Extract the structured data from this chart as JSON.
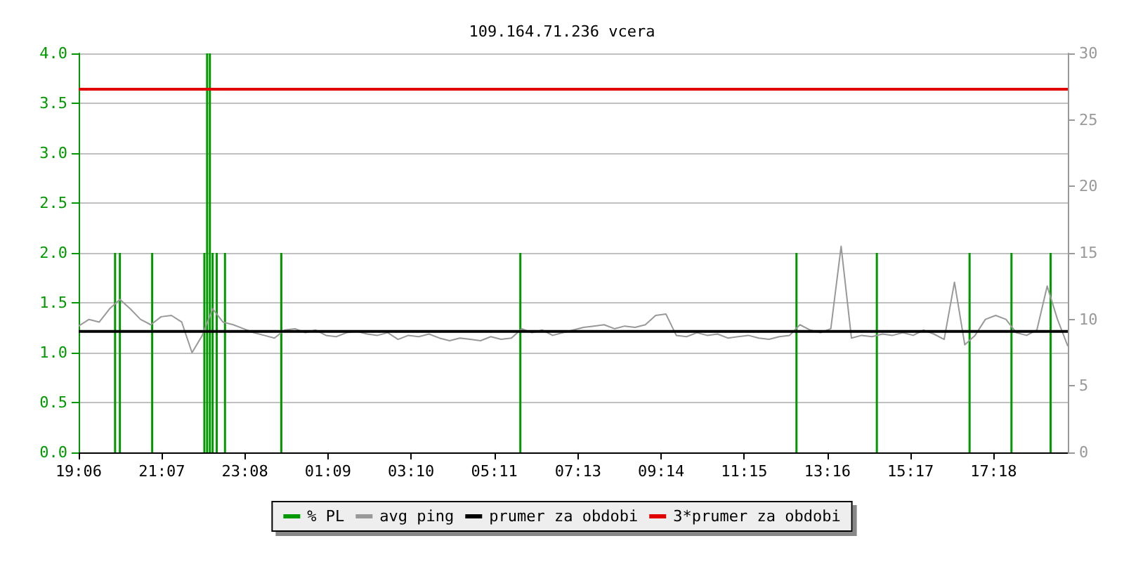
{
  "chart_data": {
    "type": "line",
    "title": "109.164.71.236 vcera",
    "xlim": [
      "--01-01T19:06",
      "--01-02T19:06"
    ],
    "xticks": [
      {
        "value": "--01-01T19:06",
        "label": "19:06"
      },
      {
        "value": "--01-01T21:07",
        "label": "21:07"
      },
      {
        "value": "--01-01T23:08",
        "label": "23:08"
      },
      {
        "value": "--01-02T01:09",
        "label": "01:09"
      },
      {
        "value": "--01-02T03:10",
        "label": "03:10"
      },
      {
        "value": "--01-02T05:11",
        "label": "05:11"
      },
      {
        "value": "--01-02T07:13",
        "label": "07:13"
      },
      {
        "value": "--01-02T09:14",
        "label": "09:14"
      },
      {
        "value": "--01-02T11:15",
        "label": "11:15"
      },
      {
        "value": "--01-02T13:16",
        "label": "13:16"
      },
      {
        "value": "--01-02T15:17",
        "label": "15:17"
      },
      {
        "value": "--01-02T17:18",
        "label": "17:18"
      }
    ],
    "ylim": [
      0,
      4
    ],
    "yticks": [
      {
        "value": 0,
        "label": "0.0"
      },
      {
        "value": 0.5,
        "label": "0.5"
      },
      {
        "value": 1,
        "label": "1.0"
      },
      {
        "value": 1.5,
        "label": "1.5"
      },
      {
        "value": 2,
        "label": "2.0"
      },
      {
        "value": 2.5,
        "label": "2.5"
      },
      {
        "value": 3,
        "label": "3.0"
      },
      {
        "value": 3.5,
        "label": "3.5"
      },
      {
        "value": 4,
        "label": "4.0"
      }
    ],
    "y2lim": [
      0,
      30
    ],
    "y2ticks": [
      0,
      5,
      10,
      15,
      20,
      25,
      30
    ],
    "grid": "y",
    "legend": "bottom",
    "marker": "none",
    "line_style": "solid",
    "series": [
      {
        "name": "% PL",
        "type": "bar",
        "color": "#009900",
        "x": [
          "--01-01T19:59",
          "--01-01T20:06",
          "--01-01T20:53",
          "--01-01T22:09",
          "--01-01T22:13",
          "--01-01T22:17",
          "--01-01T22:21",
          "--01-01T22:27",
          "--01-01T22:39",
          "--01-02T00:01",
          "--01-02T05:49",
          "--01-02T12:31",
          "--01-02T14:28",
          "--01-02T16:43",
          "--01-02T17:44",
          "--01-02T18:41"
        ],
        "values": [
          2,
          2,
          2,
          2,
          4,
          4,
          2,
          2,
          2,
          2,
          2,
          2,
          2,
          2,
          2,
          2
        ]
      },
      {
        "name": "avg ping",
        "axis": "y2",
        "color": "#999999",
        "x": [
          "--01-01T19:06",
          "--01-01T19:21",
          "--01-01T19:36",
          "--01-01T19:51",
          "--01-01T20:06",
          "--01-01T20:21",
          "--01-01T20:36",
          "--01-01T20:51",
          "--01-01T21:06",
          "--01-01T21:21",
          "--01-01T21:36",
          "--01-01T21:51",
          "--01-01T22:06",
          "--01-01T22:21",
          "--01-01T22:36",
          "--01-01T22:51",
          "--01-01T23:06",
          "--01-01T23:21",
          "--01-01T23:36",
          "--01-01T23:51",
          "--01-02T00:06",
          "--01-02T00:21",
          "--01-02T00:36",
          "--01-02T00:51",
          "--01-02T01:06",
          "--01-02T01:21",
          "--01-02T01:36",
          "--01-02T01:51",
          "--01-02T02:06",
          "--01-02T02:21",
          "--01-02T02:36",
          "--01-02T02:51",
          "--01-02T03:06",
          "--01-02T03:21",
          "--01-02T03:36",
          "--01-02T03:51",
          "--01-02T04:06",
          "--01-02T04:21",
          "--01-02T04:36",
          "--01-02T04:51",
          "--01-02T05:06",
          "--01-02T05:21",
          "--01-02T05:36",
          "--01-02T05:51",
          "--01-02T06:06",
          "--01-02T06:21",
          "--01-02T06:36",
          "--01-02T06:51",
          "--01-02T07:06",
          "--01-02T07:21",
          "--01-02T07:36",
          "--01-02T07:51",
          "--01-02T08:06",
          "--01-02T08:21",
          "--01-02T08:36",
          "--01-02T08:51",
          "--01-02T09:06",
          "--01-02T09:21",
          "--01-02T09:36",
          "--01-02T09:51",
          "--01-02T10:06",
          "--01-02T10:21",
          "--01-02T10:36",
          "--01-02T10:51",
          "--01-02T11:06",
          "--01-02T11:21",
          "--01-02T11:36",
          "--01-02T11:51",
          "--01-02T12:06",
          "--01-02T12:21",
          "--01-02T12:36",
          "--01-02T12:51",
          "--01-02T13:06",
          "--01-02T13:21",
          "--01-02T13:36",
          "--01-02T13:51",
          "--01-02T14:06",
          "--01-02T14:21",
          "--01-02T14:36",
          "--01-02T14:51",
          "--01-02T15:06",
          "--01-02T15:21",
          "--01-02T15:36",
          "--01-02T15:51",
          "--01-02T16:06",
          "--01-02T16:21",
          "--01-02T16:36",
          "--01-02T16:51",
          "--01-02T17:06",
          "--01-02T17:21",
          "--01-02T17:36",
          "--01-02T17:51",
          "--01-02T18:06",
          "--01-02T18:21",
          "--01-02T18:36",
          "--01-02T18:51",
          "--01-02T19:06"
        ],
        "values": [
          9.5,
          10.0,
          9.8,
          10.8,
          11.5,
          10.8,
          10.0,
          9.6,
          10.2,
          10.3,
          9.8,
          7.5,
          8.8,
          10.8,
          9.8,
          9.6,
          9.3,
          9.0,
          8.8,
          8.6,
          9.2,
          9.3,
          9.0,
          9.2,
          8.8,
          8.7,
          9.0,
          9.1,
          8.9,
          8.8,
          9.0,
          8.5,
          8.8,
          8.7,
          8.9,
          8.6,
          8.4,
          8.6,
          8.5,
          8.4,
          8.7,
          8.5,
          8.6,
          9.3,
          9.0,
          9.2,
          8.8,
          9.0,
          9.2,
          9.4,
          9.5,
          9.6,
          9.3,
          9.5,
          9.4,
          9.6,
          10.3,
          10.4,
          8.8,
          8.7,
          9.0,
          8.8,
          8.9,
          8.6,
          8.7,
          8.8,
          8.6,
          8.5,
          8.7,
          8.8,
          9.6,
          9.2,
          9.0,
          9.3,
          15.5,
          8.6,
          8.8,
          8.7,
          8.9,
          8.8,
          9.0,
          8.8,
          9.2,
          8.9,
          8.5,
          12.8,
          8.1,
          8.8,
          10.0,
          10.3,
          10.0,
          9.0,
          8.8,
          9.2,
          12.5,
          10.0,
          8.0
        ]
      },
      {
        "name": "prumer za obdobi",
        "axis": "y2",
        "color": "#000000",
        "x": [
          "--01-01T19:06",
          "--01-02T19:06"
        ],
        "values": [
          9.1,
          9.1
        ]
      },
      {
        "name": "3*prumer za obdobi",
        "axis": "y2",
        "color": "#e00000",
        "x": [
          "--01-01T19:06",
          "--01-02T19:06"
        ],
        "values": [
          27.3,
          27.3
        ]
      }
    ]
  }
}
